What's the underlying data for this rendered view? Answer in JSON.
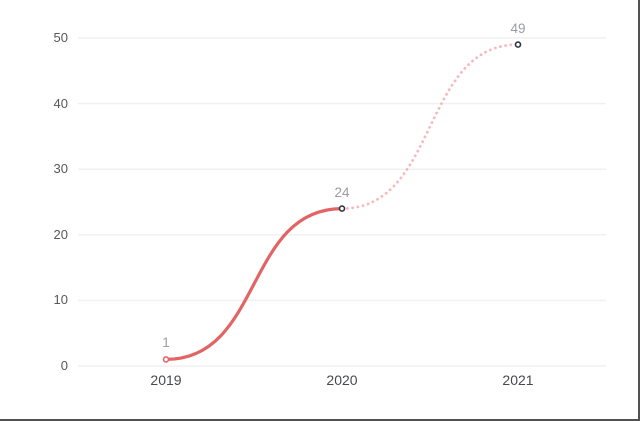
{
  "page": {
    "background": "#ffffff",
    "frame_color": "#515151"
  },
  "chart_data": {
    "type": "line",
    "title": "",
    "xlabel": "",
    "ylabel": "",
    "legend": "none",
    "grid": "horizontal-only",
    "categories": [
      "2019",
      "2020",
      "2021"
    ],
    "values": [
      1,
      24,
      49
    ],
    "point_labels": [
      "1",
      "24",
      "49"
    ],
    "yticks": [
      0,
      10,
      20,
      30,
      40,
      50
    ],
    "ylim": [
      0,
      50
    ],
    "segments": [
      {
        "name": "2019-to-2020",
        "style": "solid",
        "from": 0,
        "to": 1,
        "color": "#e26464"
      },
      {
        "name": "2020-to-2021",
        "style": "dotted",
        "from": 1,
        "to": 2,
        "color": "#f5babd"
      }
    ],
    "colors": {
      "grid": "#f0f0f3",
      "y_tick_text": "#55585c",
      "x_tick_text": "#47494c",
      "point_label_text": "#9a9da1",
      "marker_fill": "#ffffff",
      "marker_strokes": [
        "#e26464",
        "#2e3440",
        "#2e3440"
      ]
    }
  }
}
